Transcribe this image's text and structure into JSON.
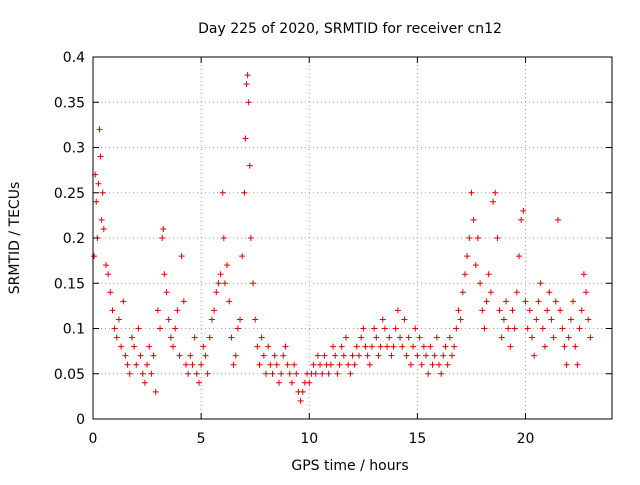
{
  "chart_data": {
    "type": "scatter",
    "title": "Day 225 of 2020, SRMTID for receiver cn12",
    "xlabel": "GPS time / hours",
    "ylabel": "SRMTID / TECUs",
    "xlim": [
      0,
      24
    ],
    "ylim": [
      0,
      0.4
    ],
    "x_ticks": [
      0,
      5,
      10,
      15,
      20
    ],
    "x_tick_labels": [
      "0",
      "5",
      "10",
      "15",
      "20"
    ],
    "y_ticks": [
      0,
      0.05,
      0.1,
      0.15,
      0.2,
      0.25,
      0.3,
      0.35,
      0.4
    ],
    "y_tick_labels": [
      "0",
      "0.05",
      "0.1",
      "0.15",
      "0.2",
      "0.25",
      "0.3",
      "0.35",
      "0.4"
    ],
    "grid": true,
    "marker": "+",
    "colors": {
      "points": "#e00000",
      "grid": "#a0a0a0",
      "axis": "#000000"
    },
    "series": [
      {
        "name": "SRMTID",
        "points": [
          [
            0.05,
            0.18
          ],
          [
            0.1,
            0.27
          ],
          [
            0.15,
            0.24
          ],
          [
            0.2,
            0.2
          ],
          [
            0.25,
            0.26
          ],
          [
            0.3,
            0.32
          ],
          [
            0.35,
            0.29
          ],
          [
            0.4,
            0.22
          ],
          [
            0.45,
            0.25
          ],
          [
            0.5,
            0.21
          ],
          [
            0.6,
            0.17
          ],
          [
            0.7,
            0.16
          ],
          [
            0.8,
            0.14
          ],
          [
            0.9,
            0.12
          ],
          [
            1.0,
            0.1
          ],
          [
            1.1,
            0.09
          ],
          [
            1.2,
            0.11
          ],
          [
            1.3,
            0.08
          ],
          [
            1.4,
            0.13
          ],
          [
            1.5,
            0.07
          ],
          [
            1.6,
            0.06
          ],
          [
            1.7,
            0.05
          ],
          [
            1.8,
            0.09
          ],
          [
            1.9,
            0.08
          ],
          [
            2.0,
            0.06
          ],
          [
            2.1,
            0.1
          ],
          [
            2.2,
            0.07
          ],
          [
            2.3,
            0.05
          ],
          [
            2.4,
            0.04
          ],
          [
            2.5,
            0.06
          ],
          [
            2.6,
            0.08
          ],
          [
            2.7,
            0.05
          ],
          [
            2.8,
            0.07
          ],
          [
            2.9,
            0.03
          ],
          [
            3.0,
            0.12
          ],
          [
            3.1,
            0.1
          ],
          [
            3.2,
            0.2
          ],
          [
            3.25,
            0.21
          ],
          [
            3.3,
            0.16
          ],
          [
            3.4,
            0.14
          ],
          [
            3.5,
            0.11
          ],
          [
            3.6,
            0.09
          ],
          [
            3.7,
            0.08
          ],
          [
            3.8,
            0.1
          ],
          [
            3.9,
            0.12
          ],
          [
            4.0,
            0.07
          ],
          [
            4.1,
            0.18
          ],
          [
            4.2,
            0.13
          ],
          [
            4.3,
            0.06
          ],
          [
            4.4,
            0.05
          ],
          [
            4.5,
            0.07
          ],
          [
            4.6,
            0.06
          ],
          [
            4.7,
            0.09
          ],
          [
            4.8,
            0.05
          ],
          [
            4.9,
            0.04
          ],
          [
            5.0,
            0.06
          ],
          [
            5.1,
            0.08
          ],
          [
            5.2,
            0.07
          ],
          [
            5.3,
            0.05
          ],
          [
            5.4,
            0.09
          ],
          [
            5.5,
            0.11
          ],
          [
            5.6,
            0.12
          ],
          [
            5.7,
            0.14
          ],
          [
            5.8,
            0.15
          ],
          [
            5.9,
            0.16
          ],
          [
            6.0,
            0.25
          ],
          [
            6.05,
            0.2
          ],
          [
            6.1,
            0.15
          ],
          [
            6.2,
            0.17
          ],
          [
            6.3,
            0.13
          ],
          [
            6.4,
            0.09
          ],
          [
            6.5,
            0.06
          ],
          [
            6.6,
            0.07
          ],
          [
            6.7,
            0.1
          ],
          [
            6.8,
            0.11
          ],
          [
            6.9,
            0.18
          ],
          [
            7.0,
            0.25
          ],
          [
            7.05,
            0.31
          ],
          [
            7.1,
            0.37
          ],
          [
            7.15,
            0.38
          ],
          [
            7.2,
            0.35
          ],
          [
            7.25,
            0.28
          ],
          [
            7.3,
            0.2
          ],
          [
            7.4,
            0.15
          ],
          [
            7.5,
            0.11
          ],
          [
            7.6,
            0.08
          ],
          [
            7.7,
            0.06
          ],
          [
            7.8,
            0.09
          ],
          [
            7.9,
            0.07
          ],
          [
            8.0,
            0.05
          ],
          [
            8.1,
            0.08
          ],
          [
            8.2,
            0.06
          ],
          [
            8.3,
            0.05
          ],
          [
            8.4,
            0.07
          ],
          [
            8.5,
            0.06
          ],
          [
            8.6,
            0.04
          ],
          [
            8.7,
            0.05
          ],
          [
            8.8,
            0.07
          ],
          [
            8.9,
            0.08
          ],
          [
            9.0,
            0.06
          ],
          [
            9.1,
            0.05
          ],
          [
            9.2,
            0.04
          ],
          [
            9.3,
            0.06
          ],
          [
            9.4,
            0.05
          ],
          [
            9.5,
            0.03
          ],
          [
            9.6,
            0.02
          ],
          [
            9.7,
            0.03
          ],
          [
            9.8,
            0.04
          ],
          [
            9.9,
            0.05
          ],
          [
            10.0,
            0.04
          ],
          [
            10.1,
            0.05
          ],
          [
            10.2,
            0.06
          ],
          [
            10.3,
            0.05
          ],
          [
            10.4,
            0.07
          ],
          [
            10.5,
            0.06
          ],
          [
            10.6,
            0.05
          ],
          [
            10.7,
            0.07
          ],
          [
            10.8,
            0.06
          ],
          [
            10.9,
            0.05
          ],
          [
            11.0,
            0.06
          ],
          [
            11.1,
            0.08
          ],
          [
            11.2,
            0.07
          ],
          [
            11.3,
            0.05
          ],
          [
            11.4,
            0.06
          ],
          [
            11.5,
            0.08
          ],
          [
            11.6,
            0.07
          ],
          [
            11.7,
            0.09
          ],
          [
            11.8,
            0.06
          ],
          [
            11.9,
            0.05
          ],
          [
            12.0,
            0.07
          ],
          [
            12.1,
            0.06
          ],
          [
            12.2,
            0.08
          ],
          [
            12.3,
            0.07
          ],
          [
            12.4,
            0.09
          ],
          [
            12.5,
            0.1
          ],
          [
            12.6,
            0.08
          ],
          [
            12.7,
            0.07
          ],
          [
            12.8,
            0.06
          ],
          [
            12.9,
            0.08
          ],
          [
            13.0,
            0.1
          ],
          [
            13.1,
            0.09
          ],
          [
            13.2,
            0.07
          ],
          [
            13.3,
            0.08
          ],
          [
            13.4,
            0.11
          ],
          [
            13.5,
            0.1
          ],
          [
            13.6,
            0.08
          ],
          [
            13.7,
            0.09
          ],
          [
            13.8,
            0.07
          ],
          [
            13.9,
            0.08
          ],
          [
            14.0,
            0.1
          ],
          [
            14.1,
            0.12
          ],
          [
            14.2,
            0.09
          ],
          [
            14.3,
            0.08
          ],
          [
            14.4,
            0.11
          ],
          [
            14.5,
            0.07
          ],
          [
            14.6,
            0.09
          ],
          [
            14.7,
            0.06
          ],
          [
            14.8,
            0.08
          ],
          [
            14.9,
            0.1
          ],
          [
            15.0,
            0.07
          ],
          [
            15.1,
            0.09
          ],
          [
            15.2,
            0.06
          ],
          [
            15.3,
            0.08
          ],
          [
            15.4,
            0.07
          ],
          [
            15.5,
            0.05
          ],
          [
            15.6,
            0.08
          ],
          [
            15.7,
            0.06
          ],
          [
            15.8,
            0.07
          ],
          [
            15.9,
            0.09
          ],
          [
            16.0,
            0.06
          ],
          [
            16.1,
            0.05
          ],
          [
            16.2,
            0.07
          ],
          [
            16.3,
            0.08
          ],
          [
            16.4,
            0.06
          ],
          [
            16.5,
            0.09
          ],
          [
            16.6,
            0.07
          ],
          [
            16.7,
            0.08
          ],
          [
            16.8,
            0.1
          ],
          [
            16.9,
            0.12
          ],
          [
            17.0,
            0.11
          ],
          [
            17.1,
            0.14
          ],
          [
            17.2,
            0.16
          ],
          [
            17.3,
            0.18
          ],
          [
            17.4,
            0.2
          ],
          [
            17.5,
            0.25
          ],
          [
            17.6,
            0.22
          ],
          [
            17.7,
            0.17
          ],
          [
            17.8,
            0.2
          ],
          [
            17.9,
            0.15
          ],
          [
            18.0,
            0.12
          ],
          [
            18.1,
            0.1
          ],
          [
            18.2,
            0.13
          ],
          [
            18.3,
            0.16
          ],
          [
            18.4,
            0.14
          ],
          [
            18.5,
            0.24
          ],
          [
            18.6,
            0.25
          ],
          [
            18.7,
            0.2
          ],
          [
            18.8,
            0.12
          ],
          [
            18.9,
            0.09
          ],
          [
            19.0,
            0.11
          ],
          [
            19.1,
            0.13
          ],
          [
            19.2,
            0.1
          ],
          [
            19.3,
            0.08
          ],
          [
            19.4,
            0.12
          ],
          [
            19.5,
            0.1
          ],
          [
            19.6,
            0.14
          ],
          [
            19.7,
            0.18
          ],
          [
            19.8,
            0.22
          ],
          [
            19.9,
            0.23
          ],
          [
            20.0,
            0.13
          ],
          [
            20.1,
            0.1
          ],
          [
            20.2,
            0.12
          ],
          [
            20.3,
            0.09
          ],
          [
            20.4,
            0.07
          ],
          [
            20.5,
            0.11
          ],
          [
            20.6,
            0.13
          ],
          [
            20.7,
            0.15
          ],
          [
            20.8,
            0.1
          ],
          [
            20.9,
            0.08
          ],
          [
            21.0,
            0.12
          ],
          [
            21.1,
            0.14
          ],
          [
            21.2,
            0.11
          ],
          [
            21.3,
            0.09
          ],
          [
            21.4,
            0.13
          ],
          [
            21.5,
            0.22
          ],
          [
            21.6,
            0.12
          ],
          [
            21.7,
            0.1
          ],
          [
            21.8,
            0.08
          ],
          [
            21.9,
            0.06
          ],
          [
            22.0,
            0.09
          ],
          [
            22.1,
            0.11
          ],
          [
            22.2,
            0.13
          ],
          [
            22.3,
            0.08
          ],
          [
            22.4,
            0.06
          ],
          [
            22.5,
            0.1
          ],
          [
            22.6,
            0.12
          ],
          [
            22.7,
            0.16
          ],
          [
            22.8,
            0.14
          ],
          [
            22.9,
            0.11
          ],
          [
            23.0,
            0.09
          ]
        ]
      }
    ]
  }
}
